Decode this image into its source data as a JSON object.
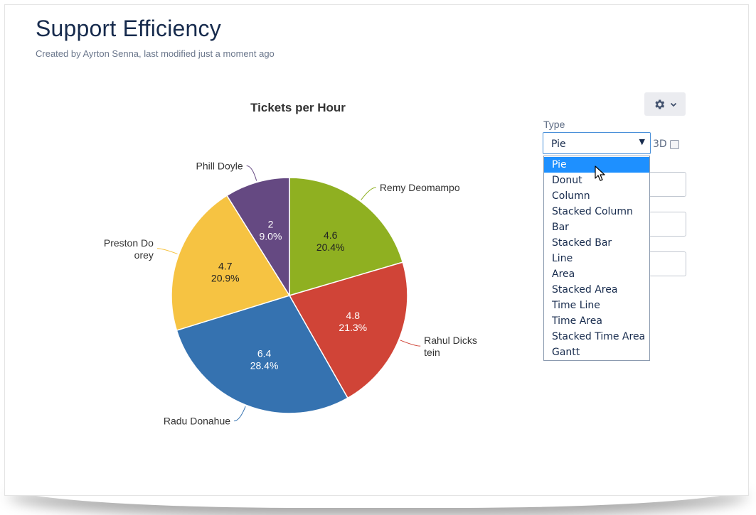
{
  "page": {
    "title": "Support Efficiency",
    "byline": "Created by Ayrton Senna, last modified just a moment ago"
  },
  "chart_data": {
    "type": "pie",
    "title": "Tickets per Hour",
    "slices": [
      {
        "label": "Remy Deomampo",
        "label_lines": [
          "Remy Deomampo"
        ],
        "value": 4.6,
        "percent": "20.4%",
        "color": "#8fb021"
      },
      {
        "label": "Rahul Dickstein",
        "label_lines": [
          "Rahul Dicks",
          "tein"
        ],
        "value": 4.8,
        "percent": "21.3%",
        "color": "#d04437"
      },
      {
        "label": "Radu Donahue",
        "label_lines": [
          "Radu Donahue"
        ],
        "value": 6.4,
        "percent": "28.4%",
        "color": "#3572b0"
      },
      {
        "label": "Preston Doorey",
        "label_lines": [
          "Preston Do",
          "orey"
        ],
        "value": 4.7,
        "percent": "20.9%",
        "color": "#f6c342"
      },
      {
        "label": "Phill Doyle",
        "label_lines": [
          "Phill Doyle"
        ],
        "value": 2,
        "percent": "9.0%",
        "color": "#654982"
      }
    ]
  },
  "controls": {
    "type_label": "Type",
    "type_value": "Pie",
    "three_d_label": "3D",
    "gear_icon": "gear-icon",
    "options": [
      "Pie",
      "Donut",
      "Column",
      "Stacked Column",
      "Bar",
      "Stacked Bar",
      "Line",
      "Area",
      "Stacked Area",
      "Time Line",
      "Time Area",
      "Stacked Time Area",
      "Gantt"
    ],
    "selected_option": "Pie"
  }
}
